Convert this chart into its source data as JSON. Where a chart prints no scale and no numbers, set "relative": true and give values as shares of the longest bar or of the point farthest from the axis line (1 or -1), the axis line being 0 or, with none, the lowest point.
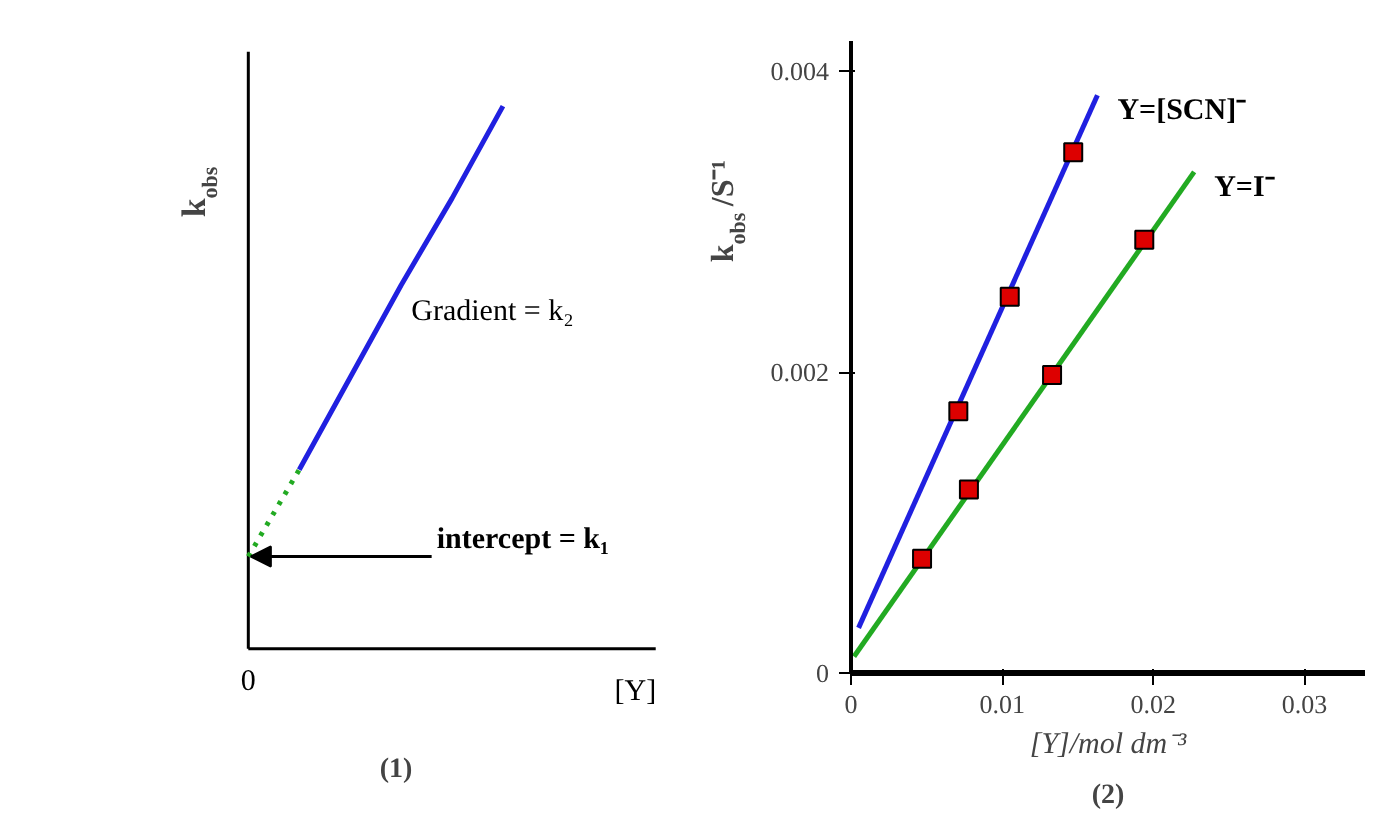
{
  "chart_data": [
    {
      "type": "line",
      "title": "(1)",
      "xlabel": "[Y]",
      "ylabel": "k$_{obs}$",
      "relative": true,
      "categories": [
        null,
        null,
        null,
        null,
        null,
        null
      ],
      "series": [
        {
          "color": "#22aa22",
          "line_style": "dotted",
          "values": [
            0.17,
            0.33,
            null,
            null,
            null,
            null
          ]
        },
        {
          "color": "#2020e0",
          "values": [
            null,
            0.33,
            0.5,
            0.67,
            0.83,
            1.0
          ]
        }
      ],
      "annotations": [
        "Gradient = k₂",
        "intercept = k₁",
        "0"
      ]
    },
    {
      "type": "scatter",
      "title": "(2)",
      "xlabel": "[Y]/mol dm⁻³",
      "ylabel": "k$_{obs}$/S⁻¹",
      "xlim": [
        0,
        0.034
      ],
      "ylim": [
        0,
        0.0042
      ],
      "xticks": [
        0,
        0.01,
        0.02,
        0.03
      ],
      "yticks": [
        0,
        0.002,
        0.004
      ],
      "series": [
        {
          "type": "line",
          "name": "Y=[SCN]⁻",
          "color": "#2020e0",
          "x": [
            0.0005,
            0.0163
          ],
          "values": [
            0.0003,
            0.00384
          ]
        },
        {
          "type": "line",
          "name": "Y=I⁻",
          "color": "#22aa22",
          "x": [
            0.0002,
            0.0227
          ],
          "values": [
            0.00011,
            0.00333
          ]
        },
        {
          "color": "#dd0000",
          "marker": "square",
          "x": [
            0.0071,
            0.0105,
            0.0147
          ],
          "values": [
            0.00174,
            0.0025,
            0.00346
          ]
        },
        {
          "color": "#dd0000",
          "marker": "square",
          "x": [
            0.0047,
            0.0078,
            0.0133,
            0.0194
          ],
          "values": [
            0.00076,
            0.00122,
            0.00198,
            0.00288
          ]
        }
      ]
    }
  ]
}
